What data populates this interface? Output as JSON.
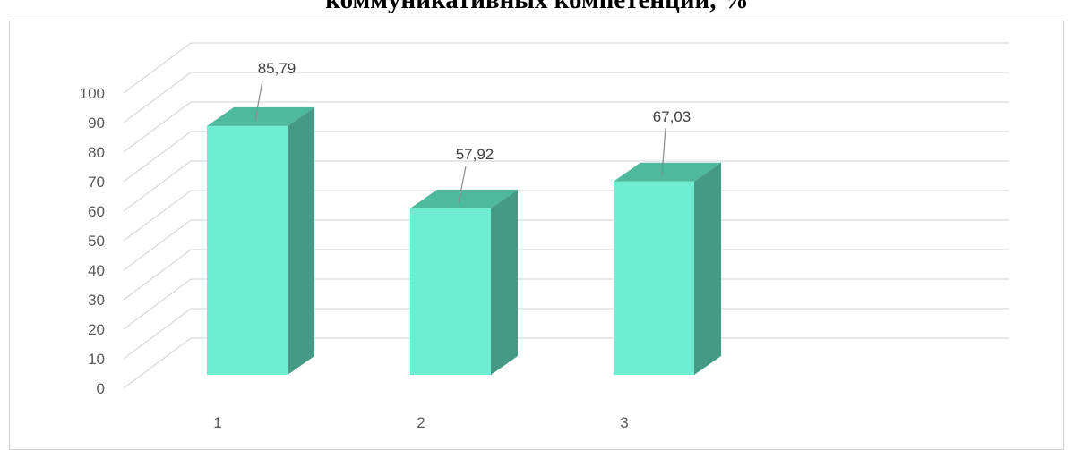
{
  "title": "коммуникативных компетенций, %",
  "chart_data": {
    "type": "bar",
    "categories": [
      "1",
      "2",
      "3"
    ],
    "values": [
      85.79,
      57.92,
      67.03
    ],
    "data_labels": [
      "85,79",
      "57,92",
      "67,03"
    ],
    "ylim": [
      0,
      100
    ],
    "yticks": [
      "0",
      "10",
      "20",
      "30",
      "40",
      "50",
      "60",
      "70",
      "80",
      "90",
      "100"
    ],
    "grid": true,
    "style": "3d-column",
    "colors": {
      "front": "#6eedd3",
      "top": "#4fb99e",
      "side": "#459a85",
      "grid": "#d9d9d9",
      "leader": "#8c8c8c"
    }
  }
}
